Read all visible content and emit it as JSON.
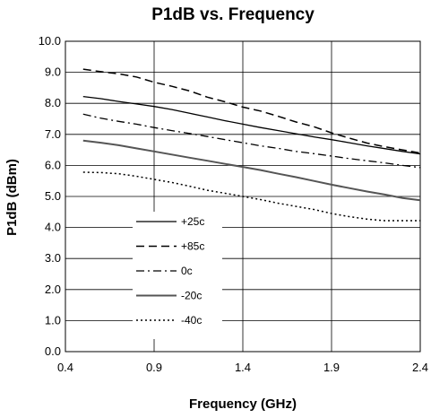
{
  "chart_data": {
    "type": "line",
    "title": "P1dB vs. Frequency",
    "xlabel": "Frequency (GHz)",
    "ylabel": "P1dB (dBm)",
    "xlim": [
      0.4,
      2.4
    ],
    "ylim": [
      0.0,
      10.0
    ],
    "xticks": [
      "0.4",
      "0.9",
      "1.4",
      "1.9",
      "2.4"
    ],
    "yticks": [
      "0.0",
      "1.0",
      "2.0",
      "3.0",
      "4.0",
      "5.0",
      "6.0",
      "7.0",
      "8.0",
      "9.0",
      "10.0"
    ],
    "grid": true,
    "legend_position": "lower-left",
    "x": [
      0.5,
      0.6,
      0.7,
      0.8,
      0.9,
      1.0,
      1.1,
      1.2,
      1.3,
      1.4,
      1.5,
      1.6,
      1.7,
      1.8,
      1.9,
      2.0,
      2.1,
      2.2,
      2.3,
      2.4
    ],
    "series": [
      {
        "name": "+25c",
        "style": "solid-thin",
        "color": "#000000",
        "values": [
          8.22,
          8.15,
          8.06,
          7.98,
          7.9,
          7.8,
          7.68,
          7.56,
          7.44,
          7.33,
          7.22,
          7.12,
          7.02,
          6.92,
          6.83,
          6.73,
          6.63,
          6.54,
          6.45,
          6.37
        ]
      },
      {
        "name": "+85c",
        "style": "dashed",
        "color": "#000000",
        "values": [
          9.1,
          9.02,
          8.95,
          8.85,
          8.68,
          8.55,
          8.4,
          8.2,
          8.05,
          7.88,
          7.75,
          7.58,
          7.4,
          7.25,
          7.05,
          6.88,
          6.72,
          6.6,
          6.5,
          6.4
        ]
      },
      {
        "name": "0c",
        "style": "dash-dot",
        "color": "#000000",
        "values": [
          7.65,
          7.52,
          7.42,
          7.33,
          7.22,
          7.12,
          7.03,
          6.93,
          6.83,
          6.73,
          6.63,
          6.55,
          6.45,
          6.38,
          6.3,
          6.22,
          6.15,
          6.08,
          6.0,
          5.93
        ]
      },
      {
        "name": "-20c",
        "style": "solid-thick",
        "color": "#555555",
        "values": [
          6.8,
          6.73,
          6.65,
          6.55,
          6.45,
          6.35,
          6.25,
          6.15,
          6.05,
          5.95,
          5.85,
          5.73,
          5.62,
          5.5,
          5.38,
          5.27,
          5.16,
          5.06,
          4.95,
          4.88
        ]
      },
      {
        "name": "-40c",
        "style": "dotted",
        "color": "#000000",
        "values": [
          5.78,
          5.77,
          5.73,
          5.65,
          5.55,
          5.45,
          5.33,
          5.2,
          5.1,
          5.0,
          4.9,
          4.78,
          4.68,
          4.58,
          4.45,
          4.35,
          4.27,
          4.22,
          4.22,
          4.22
        ]
      }
    ]
  }
}
